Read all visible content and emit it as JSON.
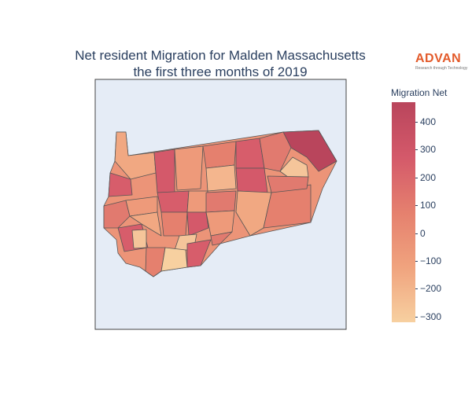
{
  "title_lines": [
    "Net resident Migration for Malden Massachusetts",
    "the first three months of 2019"
  ],
  "logo": {
    "word": "ADVAN",
    "tagline": "Research through Technology"
  },
  "colorbar": {
    "title": "Migration Net",
    "range": [
      -320,
      470
    ],
    "ticks": [
      "400",
      "300",
      "200",
      "100",
      "0",
      "−100",
      "−200",
      "−300"
    ],
    "tick_values": [
      400,
      300,
      200,
      100,
      0,
      -100,
      -200,
      -300
    ],
    "colorscale": [
      "#f7d0a0",
      "#f0a37e",
      "#e5806e",
      "#d4596a",
      "#b9455c"
    ]
  },
  "map_regions": [
    {
      "value": 470
    },
    {
      "value": -280
    },
    {
      "value": 180
    },
    {
      "value": 150
    },
    {
      "value": 40
    },
    {
      "value": -60
    },
    {
      "value": -250
    },
    {
      "value": -230
    },
    {
      "value": 120
    }
  ]
}
